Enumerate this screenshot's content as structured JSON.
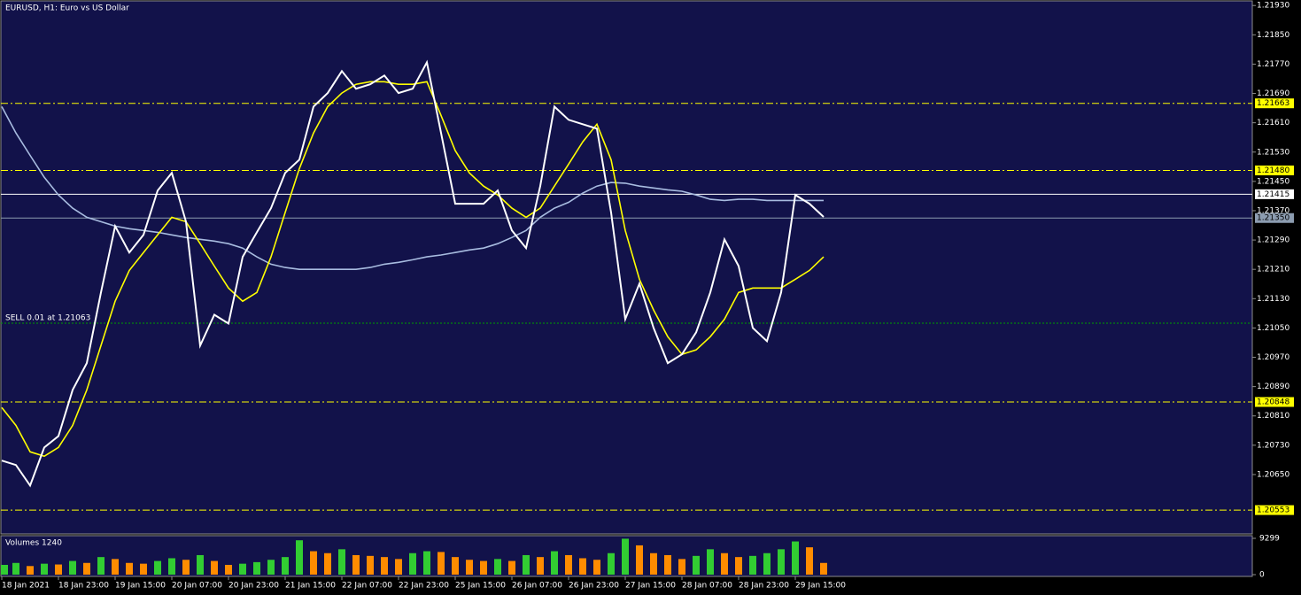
{
  "chart_data": [
    {
      "type": "line",
      "title": "EURUSD, H1:  Euro vs US Dollar",
      "categories": [
        "18 Jan 2021",
        null,
        null,
        null,
        "18 Jan 23:00",
        null,
        null,
        null,
        "19 Jan 15:00",
        null,
        null,
        null,
        "20 Jan 07:00",
        null,
        null,
        null,
        "20 Jan 23:00",
        null,
        null,
        null,
        "21 Jan 15:00",
        null,
        null,
        null,
        "22 Jan 07:00",
        null,
        null,
        null,
        "22 Jan 23:00",
        null,
        null,
        null,
        "25 Jan 15:00",
        null,
        null,
        null,
        "26 Jan 07:00",
        null,
        null,
        null,
        "26 Jan 23:00",
        null,
        null,
        null,
        "27 Jan 15:00",
        null,
        null,
        null,
        "28 Jan 07:00",
        null,
        null,
        null,
        "28 Jan 23:00",
        null,
        null,
        null,
        "29 Jan 15:00",
        null,
        null
      ],
      "series": [
        {
          "color": "#ffffff",
          "values": [
            1.20688,
            1.20676,
            1.2062,
            1.20724,
            1.20755,
            1.20881,
            1.20954,
            1.21147,
            1.21328,
            1.21256,
            1.21304,
            1.21425,
            1.21473,
            1.2134,
            1.21002,
            1.21086,
            1.21062,
            1.21244,
            1.21311,
            1.21377,
            1.21473,
            1.21509,
            1.21654,
            1.21691,
            1.21751,
            1.21703,
            1.21715,
            1.21739,
            1.21691,
            1.21703,
            1.21775,
            1.21582,
            1.21389,
            1.21389,
            1.21389,
            1.21425,
            1.21316,
            1.21268,
            1.21437,
            1.21654,
            1.21618,
            1.21606,
            1.21594,
            1.21365,
            1.21074,
            1.21171,
            1.2105,
            1.20954,
            1.20978,
            1.21038,
            1.21147,
            1.21292,
            1.21219,
            1.2105,
            1.21014,
            1.21147,
            1.21413,
            1.21389,
            1.21353
          ]
        },
        {
          "color": "#ffff00",
          "values": [
            1.20833,
            1.20784,
            1.20712,
            1.207,
            1.20724,
            1.20784,
            1.20881,
            1.21002,
            1.21123,
            1.21207,
            1.21256,
            1.21304,
            1.21352,
            1.2134,
            1.2128,
            1.21219,
            1.21159,
            1.21123,
            1.21147,
            1.21244,
            1.21365,
            1.21485,
            1.21582,
            1.21654,
            1.21691,
            1.21715,
            1.21722,
            1.21722,
            1.21715,
            1.21715,
            1.21722,
            1.2163,
            1.21534,
            1.21473,
            1.21437,
            1.21413,
            1.21377,
            1.21352,
            1.21377,
            1.21437,
            1.21497,
            1.21558,
            1.21606,
            1.21509,
            1.21316,
            1.21183,
            1.21099,
            1.21026,
            1.20978,
            1.2099,
            1.21026,
            1.21074,
            1.21147,
            1.21159,
            1.21159,
            1.21159,
            1.21183,
            1.21207,
            1.21244
          ]
        },
        {
          "color": "#a8bce0",
          "values": [
            1.21654,
            1.21582,
            1.21521,
            1.21461,
            1.21413,
            1.21377,
            1.21352,
            1.2134,
            1.21328,
            1.21321,
            1.21316,
            1.21311,
            1.21304,
            1.21297,
            1.21292,
            1.21287,
            1.2128,
            1.21268,
            1.21244,
            1.21224,
            1.21215,
            1.2121,
            1.2121,
            1.2121,
            1.2121,
            1.2121,
            1.21215,
            1.21224,
            1.21229,
            1.21236,
            1.21244,
            1.21249,
            1.21256,
            1.21263,
            1.21268,
            1.2128,
            1.21297,
            1.21316,
            1.21352,
            1.21377,
            1.21393,
            1.21418,
            1.21437,
            1.21447,
            1.21445,
            1.21437,
            1.21432,
            1.21427,
            1.21423,
            1.21413,
            1.21401,
            1.21398,
            1.21401,
            1.21401,
            1.21398,
            1.21398,
            1.21398,
            1.21398,
            1.21398
          ]
        }
      ],
      "ylim": [
        1.20488,
        1.21945
      ],
      "yticks": [
        {
          "value": 1.2193,
          "label": "1.21930"
        },
        {
          "value": 1.2185,
          "label": "1.21850"
        },
        {
          "value": 1.2177,
          "label": "1.21770"
        },
        {
          "value": 1.2169,
          "label": "1.21690"
        },
        {
          "value": 1.2161,
          "label": "1.21610"
        },
        {
          "value": 1.2153,
          "label": "1.21530"
        },
        {
          "value": 1.2145,
          "label": "1.21450"
        },
        {
          "value": 1.2137,
          "label": "1.21370"
        },
        {
          "value": 1.2129,
          "label": "1.21290"
        },
        {
          "value": 1.2121,
          "label": "1.21210"
        },
        {
          "value": 1.2113,
          "label": "1.21130"
        },
        {
          "value": 1.2105,
          "label": "1.21050"
        },
        {
          "value": 1.2097,
          "label": "1.20970"
        },
        {
          "value": 1.2089,
          "label": "1.20890"
        },
        {
          "value": 1.2081,
          "label": "1.20810"
        },
        {
          "value": 1.2073,
          "label": "1.20730"
        },
        {
          "value": 1.2065,
          "label": "1.20650"
        }
      ],
      "levels": [
        {
          "price": 1.21663,
          "color": "#ffff00",
          "style": "dashdot"
        },
        {
          "price": {
            "value": 1.2148,
            "label": "1.21480"
          },
          "color": "#ffff00",
          "style": "dashdot"
        },
        {
          "price": 1.21415,
          "color": "#ffffff",
          "style": "solid"
        },
        {
          "price": {
            "value": 1.2135,
            "label": "1.21350"
          },
          "color": "#8c9cb0",
          "style": "solid"
        },
        {
          "price": 1.20848,
          "color": "#ffff00",
          "style": "dashdot"
        },
        {
          "price": 1.20553,
          "color": "#ffff00",
          "style": "dashdot"
        }
      ],
      "order": {
        "text": "SELL 0.01 at 1.21063",
        "price": 1.21063,
        "color": "#00a000"
      }
    },
    {
      "type": "bar",
      "title": "Volumes 1240",
      "up_color": "#32cd32",
      "down_color": "#ff8c00",
      "values": [
        2500,
        3000,
        2200,
        2800,
        2600,
        3500,
        3000,
        4500,
        4000,
        3000,
        2800,
        3500,
        4200,
        3800,
        5000,
        3500,
        2500,
        2800,
        3200,
        3800,
        4500,
        8800,
        6000,
        5500,
        6500,
        5000,
        4800,
        4500,
        4000,
        5500,
        6000,
        5800,
        4500,
        3800,
        3500,
        4000,
        3500,
        5000,
        4500,
        6000,
        5000,
        4200,
        3800,
        5500,
        9200,
        7500,
        5500,
        5000,
        4000,
        4800,
        6500,
        5500,
        4500,
        4800,
        5500,
        6500,
        8500,
        7000,
        3000
      ],
      "ylim": [
        0,
        9299
      ],
      "yticks": [
        0,
        9299
      ]
    }
  ]
}
